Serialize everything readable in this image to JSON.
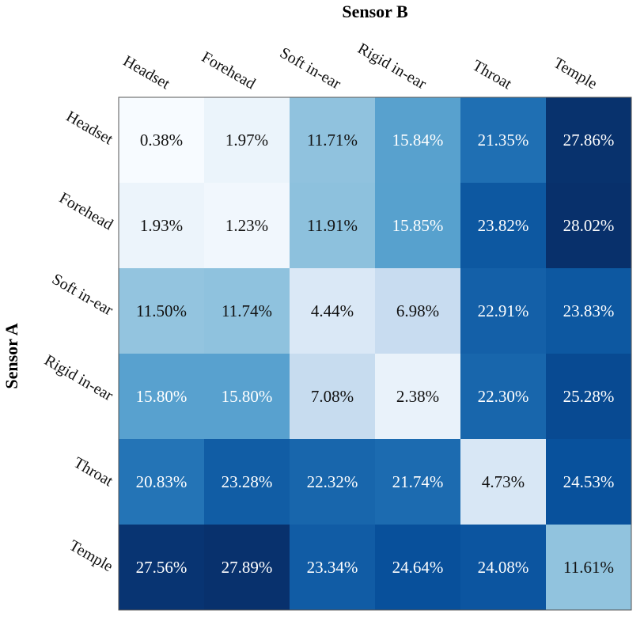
{
  "chart_data": {
    "type": "heatmap",
    "title": "",
    "xlabel": "Sensor B",
    "ylabel": "Sensor A",
    "x_categories": [
      "Headset",
      "Forehead",
      "Soft in-ear",
      "Rigid in-ear",
      "Throat",
      "Temple"
    ],
    "y_categories": [
      "Headset",
      "Forehead",
      "Soft in-ear",
      "Rigid in-ear",
      "Throat",
      "Temple"
    ],
    "values": [
      [
        0.38,
        1.97,
        11.71,
        15.84,
        21.35,
        27.86
      ],
      [
        1.93,
        1.23,
        11.91,
        15.85,
        23.82,
        28.02
      ],
      [
        11.5,
        11.74,
        4.44,
        6.98,
        22.91,
        23.83
      ],
      [
        15.8,
        15.8,
        7.08,
        2.38,
        22.3,
        25.28
      ],
      [
        20.83,
        23.28,
        22.32,
        21.74,
        4.73,
        24.53
      ],
      [
        27.56,
        27.89,
        23.34,
        24.64,
        24.08,
        11.61
      ]
    ],
    "value_unit": "%",
    "colormap": "Blues",
    "x_axis_position": "top",
    "grid": false,
    "colors": {
      "low": "#f7fbff",
      "high": "#08306b",
      "text_dark": "#111111",
      "text_light": "#ffffff"
    }
  }
}
